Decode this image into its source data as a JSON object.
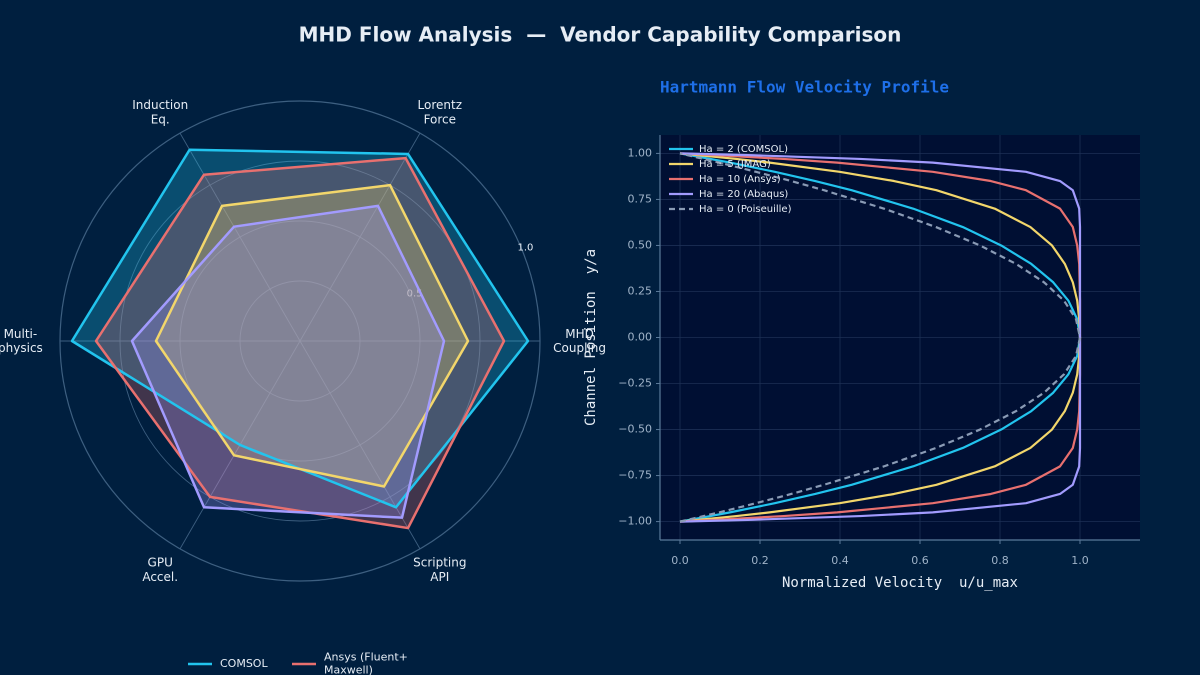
{
  "title": "MHD Flow Analysis  —  Vendor Capability Comparison",
  "chart_data": [
    {
      "type": "radar",
      "categories": [
        "MHD\nCoupling",
        "Lorentz\nForce",
        "Induction\nEq.",
        "Multi-\nphysics",
        "GPU\nAccel.",
        "Scripting\nAPI"
      ],
      "ylim": [
        0,
        1
      ],
      "yticks": [
        {
          "value": 0.25,
          "label": null
        },
        0.5,
        {
          "value": 0.75,
          "label": null
        },
        {
          "value": 1,
          "label": "1.0"
        }
      ],
      "grid": true,
      "legend": "lower center",
      "series": [
        {
          "name": "COMSOL",
          "color": "#22c4ee",
          "values": [
            0.95,
            0.9,
            0.92,
            0.95,
            0.5,
            0.8
          ]
        },
        {
          "name": "Ansys (Fluent+\nMaxwell)",
          "color": "#e8706f",
          "values": [
            0.85,
            0.88,
            0.8,
            0.85,
            0.75,
            0.9
          ]
        },
        {
          "color": "#f2d66b",
          "values": [
            0.7,
            0.75,
            0.65,
            0.6,
            0.55,
            0.7
          ]
        },
        {
          "color": "#a29bfe",
          "values": [
            0.6,
            0.65,
            0.55,
            0.7,
            0.8,
            0.85
          ]
        }
      ]
    },
    {
      "type": "line",
      "title": "Hartmann Flow Velocity Profile",
      "xlabel": "Normalized Velocity  u/u_max",
      "ylabel": "Channel Position  y/a",
      "xlim": [
        -0.05,
        1.15
      ],
      "ylim": [
        -1.1,
        1.1
      ],
      "xticks": [
        {
          "value": 0,
          "label": "0.0"
        },
        0.2,
        0.4,
        0.6,
        0.8,
        {
          "value": 1,
          "label": "1.0"
        }
      ],
      "yticks": [
        {
          "value": -1,
          "label": "−1.00"
        },
        {
          "value": -0.75,
          "label": "−0.75"
        },
        {
          "value": -0.5,
          "label": "−0.50"
        },
        {
          "value": -0.25,
          "label": "−0.25"
        },
        {
          "value": 0,
          "label": "0.00"
        },
        {
          "value": 0.25,
          "label": "0.25"
        },
        {
          "value": 0.5,
          "label": "0.50"
        },
        {
          "value": 0.75,
          "label": "0.75"
        },
        {
          "value": 1,
          "label": "1.00"
        }
      ],
      "grid": true,
      "legend": "upper left",
      "y": [
        -1,
        -0.99,
        -0.97,
        -0.95,
        -0.9,
        -0.85,
        -0.8,
        -0.7,
        -0.6,
        -0.5,
        -0.4,
        -0.3,
        -0.2,
        -0.1,
        0,
        0.1,
        0.2,
        0.3,
        0.4,
        0.5,
        0.6,
        0.7,
        0.8,
        0.85,
        0.9,
        0.95,
        0.97,
        0.99,
        1
      ],
      "series": [
        {
          "name": "Ha = 2 (COMSOL)",
          "color": "#22c4ee",
          "dashed": false,
          "x": [
            0,
            0.026,
            0.076,
            0.125,
            0.237,
            0.338,
            0.429,
            0.583,
            0.707,
            0.803,
            0.878,
            0.933,
            0.971,
            0.993,
            1,
            0.993,
            0.971,
            0.933,
            0.878,
            0.803,
            0.707,
            0.583,
            0.429,
            0.338,
            0.237,
            0.125,
            0.076,
            0.026,
            0
          ]
        },
        {
          "name": "Ha = 5 (JMAG)",
          "color": "#f2d66b",
          "dashed": false,
          "x": [
            0,
            0.049,
            0.141,
            0.224,
            0.399,
            0.535,
            0.641,
            0.787,
            0.876,
            0.93,
            0.962,
            0.982,
            0.993,
            0.998,
            1,
            0.998,
            0.993,
            0.982,
            0.962,
            0.93,
            0.876,
            0.787,
            0.641,
            0.535,
            0.399,
            0.224,
            0.141,
            0.049,
            0
          ]
        },
        {
          "name": "Ha = 10 (Ansys)",
          "color": "#e8706f",
          "dashed": false,
          "x": [
            0,
            0.095,
            0.259,
            0.393,
            0.632,
            0.777,
            0.865,
            0.95,
            0.982,
            0.993,
            0.998,
            0.999,
            1,
            1,
            1,
            1,
            1,
            0.999,
            0.998,
            0.993,
            0.982,
            0.95,
            0.865,
            0.777,
            0.632,
            0.393,
            0.259,
            0.095,
            0
          ]
        },
        {
          "name": "Ha = 20 (Abaqus)",
          "color": "#a29bfe",
          "dashed": false,
          "x": [
            0,
            0.181,
            0.451,
            0.632,
            0.865,
            0.95,
            0.982,
            0.998,
            1,
            1,
            1,
            1,
            1,
            1,
            1,
            1,
            1,
            1,
            1,
            1,
            1,
            0.998,
            0.982,
            0.95,
            0.865,
            0.632,
            0.451,
            0.181,
            0
          ]
        },
        {
          "name": "Ha = 0 (Poiseuille)",
          "color": "#8a9bb5",
          "dashed": true,
          "x": [
            0,
            0.02,
            0.059,
            0.098,
            0.19,
            0.278,
            0.36,
            0.51,
            0.64,
            0.75,
            0.84,
            0.91,
            0.96,
            0.99,
            1,
            0.99,
            0.96,
            0.91,
            0.84,
            0.75,
            0.64,
            0.51,
            0.36,
            0.278,
            0.19,
            0.098,
            0.059,
            0.02,
            0
          ]
        }
      ]
    }
  ]
}
